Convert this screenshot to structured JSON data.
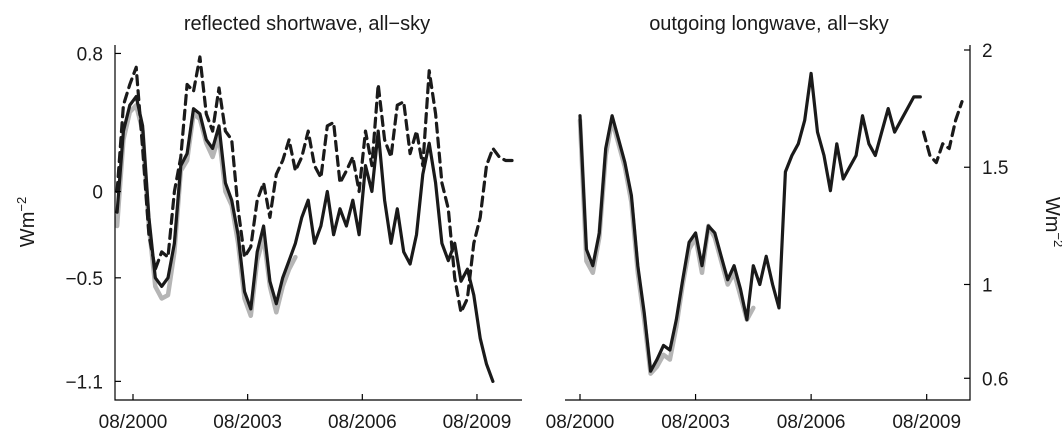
{
  "chart_data": [
    {
      "type": "line",
      "title": "reflected shortwave, all−sky",
      "ylabel": "Wm",
      "ylabel_sup": "−2",
      "yaxis_side": "left",
      "xlim": [
        "2000-08",
        "2010-07"
      ],
      "ylim": [
        -1.15,
        0.82
      ],
      "x_ticks": [
        "08/2000",
        "08/2003",
        "08/2006",
        "08/2009"
      ],
      "y_ticks": [
        {
          "value": 0.8,
          "label": "0.8"
        },
        {
          "value": 0,
          "label": "0"
        },
        {
          "value": -0.5,
          "label": "−0.5"
        },
        {
          "value": -1.1,
          "label": "−1.1"
        }
      ],
      "grid": false,
      "legend": "none",
      "series": [
        {
          "style": "gray-solid",
          "color": "#b5b5b5",
          "x": [
            "2000-03",
            "2000-05",
            "2000-07",
            "2000-09",
            "2000-11",
            "2001-01",
            "2001-03",
            "2001-05",
            "2001-07",
            "2001-09",
            "2001-11",
            "2002-01",
            "2002-03",
            "2002-05",
            "2002-07",
            "2002-09",
            "2002-11",
            "2003-01",
            "2003-03",
            "2003-05",
            "2003-07",
            "2003-09",
            "2003-11",
            "2004-01",
            "2004-03",
            "2004-05",
            "2004-07",
            "2004-09",
            "2004-11"
          ],
          "y": [
            -0.2,
            0.3,
            0.46,
            0.5,
            0.35,
            -0.2,
            -0.55,
            -0.62,
            -0.6,
            -0.35,
            0.12,
            0.18,
            0.45,
            0.42,
            0.28,
            0.2,
            0.32,
            0.0,
            -0.08,
            -0.3,
            -0.62,
            -0.72,
            -0.4,
            -0.26,
            -0.55,
            -0.7,
            -0.55,
            -0.45,
            -0.38
          ]
        },
        {
          "style": "black-dashed",
          "color": "#1a1a1a",
          "x": [
            "2000-03",
            "2000-05",
            "2000-07",
            "2000-09",
            "2000-11",
            "2001-01",
            "2001-03",
            "2001-05",
            "2001-07",
            "2001-09",
            "2001-11",
            "2002-01",
            "2002-03",
            "2002-05",
            "2002-07",
            "2002-09",
            "2002-11",
            "2003-01",
            "2003-03",
            "2003-05",
            "2003-07",
            "2003-09",
            "2003-11",
            "2004-01",
            "2004-03",
            "2004-05",
            "2004-07",
            "2004-09",
            "2004-11",
            "2005-01",
            "2005-03",
            "2005-05",
            "2005-07",
            "2005-09",
            "2005-11",
            "2006-01",
            "2006-03",
            "2006-05",
            "2006-07",
            "2006-09",
            "2006-11",
            "2007-01",
            "2007-03",
            "2007-05",
            "2007-07",
            "2007-09",
            "2007-11",
            "2008-01",
            "2008-03",
            "2008-05",
            "2008-07",
            "2008-09",
            "2008-11",
            "2009-01",
            "2009-03",
            "2009-05",
            "2009-07",
            "2009-09",
            "2009-11",
            "2010-01",
            "2010-03",
            "2010-05",
            "2010-07"
          ],
          "y": [
            0.0,
            0.5,
            0.62,
            0.72,
            0.25,
            -0.25,
            -0.45,
            -0.35,
            -0.38,
            0.0,
            0.2,
            0.62,
            0.58,
            0.78,
            0.45,
            0.35,
            0.6,
            0.35,
            0.3,
            -0.1,
            -0.38,
            -0.32,
            -0.05,
            0.05,
            -0.15,
            0.1,
            0.18,
            0.3,
            0.12,
            0.2,
            0.35,
            0.15,
            0.08,
            0.38,
            0.4,
            0.05,
            0.12,
            0.2,
            0.0,
            0.35,
            0.15,
            0.62,
            0.3,
            0.2,
            0.5,
            0.52,
            0.22,
            0.35,
            0.15,
            0.7,
            0.45,
            0.05,
            -0.1,
            -0.5,
            -0.7,
            -0.62,
            -0.3,
            -0.15,
            0.15,
            0.25,
            0.2,
            0.18,
            0.18
          ]
        },
        {
          "style": "black-solid",
          "color": "#1a1a1a",
          "x": [
            "2000-03",
            "2000-05",
            "2000-07",
            "2000-09",
            "2000-11",
            "2001-01",
            "2001-03",
            "2001-05",
            "2001-07",
            "2001-09",
            "2001-11",
            "2002-01",
            "2002-03",
            "2002-05",
            "2002-07",
            "2002-09",
            "2002-11",
            "2003-01",
            "2003-03",
            "2003-05",
            "2003-07",
            "2003-09",
            "2003-11",
            "2004-01",
            "2004-03",
            "2004-05",
            "2004-07",
            "2004-09",
            "2004-11",
            "2005-01",
            "2005-03",
            "2005-05",
            "2005-07",
            "2005-09",
            "2005-11",
            "2006-01",
            "2006-03",
            "2006-05",
            "2006-07",
            "2006-09",
            "2006-11",
            "2007-01",
            "2007-03",
            "2007-05",
            "2007-07",
            "2007-09",
            "2007-11",
            "2008-01",
            "2008-03",
            "2008-05",
            "2008-07",
            "2008-09",
            "2008-11",
            "2009-01",
            "2009-03",
            "2009-05",
            "2009-07",
            "2009-09",
            "2009-11",
            "2010-01"
          ],
          "y": [
            -0.12,
            0.35,
            0.5,
            0.55,
            0.38,
            -0.15,
            -0.5,
            -0.55,
            -0.5,
            -0.3,
            0.15,
            0.22,
            0.48,
            0.45,
            0.3,
            0.25,
            0.38,
            0.05,
            -0.05,
            -0.25,
            -0.58,
            -0.68,
            -0.35,
            -0.2,
            -0.52,
            -0.65,
            -0.5,
            -0.4,
            -0.3,
            -0.15,
            -0.05,
            -0.3,
            -0.2,
            0.0,
            -0.25,
            -0.1,
            -0.2,
            -0.05,
            -0.25,
            0.15,
            0.0,
            0.35,
            -0.05,
            -0.3,
            -0.1,
            -0.35,
            -0.42,
            -0.25,
            0.1,
            0.28,
            0.05,
            -0.3,
            -0.4,
            -0.3,
            -0.52,
            -0.45,
            -0.6,
            -0.85,
            -1.0,
            -1.1
          ]
        }
      ]
    },
    {
      "type": "line",
      "title": "outgoing longwave, all−sky",
      "ylabel": "Wm",
      "ylabel_sup": "−2",
      "yaxis_side": "right",
      "xlim": [
        "2000-08",
        "2010-07"
      ],
      "ylim": [
        0.55,
        2.0
      ],
      "x_ticks": [
        "08/2000",
        "08/2003",
        "08/2006",
        "08/2009"
      ],
      "y_ticks": [
        {
          "value": 2,
          "label": "2"
        },
        {
          "value": 1.5,
          "label": "1.5"
        },
        {
          "value": 1,
          "label": "1"
        },
        {
          "value": 0.6,
          "label": "0.6"
        }
      ],
      "grid": false,
      "legend": "none",
      "series": [
        {
          "style": "gray-solid",
          "color": "#b5b5b5",
          "x": [
            "2000-08",
            "2000-10",
            "2000-12",
            "2001-02",
            "2001-04",
            "2001-06",
            "2001-08",
            "2001-10",
            "2001-12",
            "2002-02",
            "2002-04",
            "2002-06",
            "2002-08",
            "2002-10",
            "2002-12",
            "2003-02",
            "2003-04",
            "2003-06",
            "2003-08",
            "2003-10",
            "2003-12",
            "2004-02",
            "2004-04",
            "2004-06",
            "2004-08",
            "2004-10",
            "2004-12",
            "2005-02"
          ],
          "y": [
            1.7,
            1.1,
            1.05,
            1.2,
            1.55,
            1.7,
            1.6,
            1.5,
            1.35,
            1.05,
            0.85,
            0.62,
            0.65,
            0.7,
            0.68,
            0.82,
            1.0,
            1.15,
            1.2,
            1.05,
            1.25,
            1.2,
            1.1,
            1.0,
            1.05,
            0.95,
            0.85,
            0.9
          ]
        },
        {
          "style": "black-dashed",
          "color": "#1a1a1a",
          "x": [
            "2009-07",
            "2009-09",
            "2009-11",
            "2010-01",
            "2010-03",
            "2010-05",
            "2010-07"
          ],
          "y": [
            1.65,
            1.55,
            1.52,
            1.6,
            1.58,
            1.7,
            1.78
          ]
        },
        {
          "style": "black-solid",
          "color": "#1a1a1a",
          "x": [
            "2000-08",
            "2000-10",
            "2000-12",
            "2001-02",
            "2001-04",
            "2001-06",
            "2001-08",
            "2001-10",
            "2001-12",
            "2002-02",
            "2002-04",
            "2002-06",
            "2002-08",
            "2002-10",
            "2002-12",
            "2003-02",
            "2003-04",
            "2003-06",
            "2003-08",
            "2003-10",
            "2003-12",
            "2004-02",
            "2004-04",
            "2004-06",
            "2004-08",
            "2004-10",
            "2004-12",
            "2005-02",
            "2005-04",
            "2005-06",
            "2005-08",
            "2005-10",
            "2005-12",
            "2006-02",
            "2006-04",
            "2006-06",
            "2006-08",
            "2006-10",
            "2006-12",
            "2007-02",
            "2007-04",
            "2007-06",
            "2007-08",
            "2007-10",
            "2007-12",
            "2008-02",
            "2008-04",
            "2008-06",
            "2008-08",
            "2008-10",
            "2008-12",
            "2009-02",
            "2009-04",
            "2009-06"
          ],
          "y": [
            1.72,
            1.15,
            1.08,
            1.22,
            1.58,
            1.72,
            1.62,
            1.52,
            1.38,
            1.08,
            0.88,
            0.63,
            0.68,
            0.74,
            0.72,
            0.85,
            1.02,
            1.18,
            1.22,
            1.08,
            1.25,
            1.22,
            1.12,
            1.02,
            1.08,
            0.98,
            0.85,
            1.08,
            1.0,
            1.12,
            1.0,
            0.9,
            1.48,
            1.55,
            1.6,
            1.7,
            1.9,
            1.65,
            1.55,
            1.4,
            1.6,
            1.45,
            1.5,
            1.55,
            1.72,
            1.6,
            1.55,
            1.65,
            1.75,
            1.65,
            1.7,
            1.75,
            1.8,
            1.8
          ]
        }
      ]
    }
  ]
}
